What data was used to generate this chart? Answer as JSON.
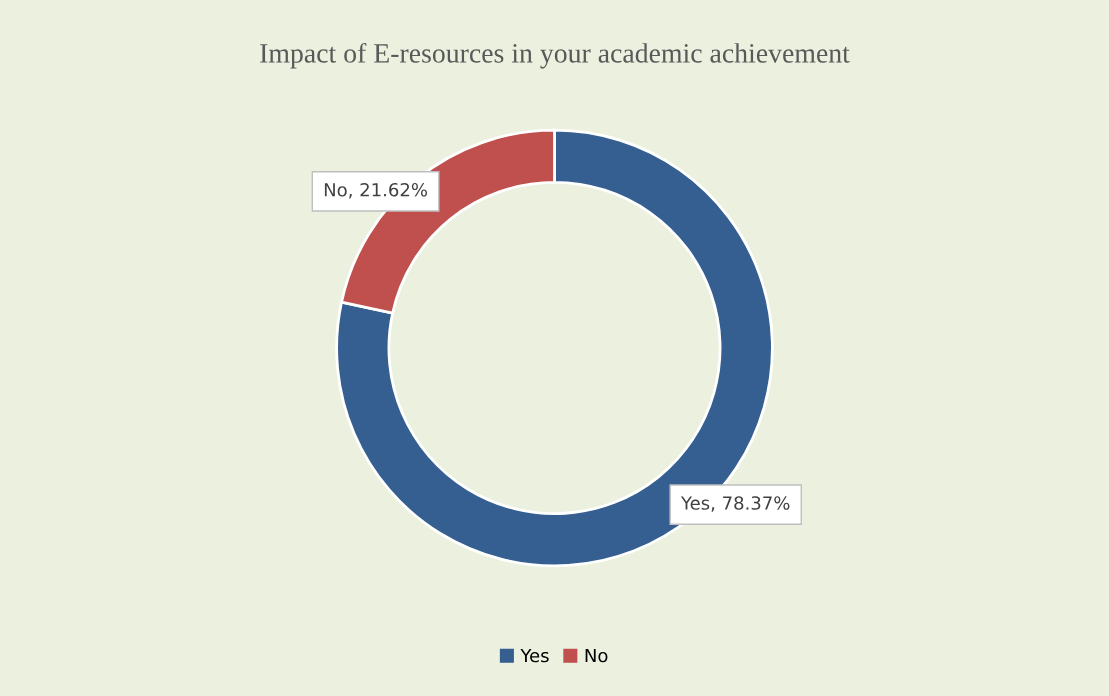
{
  "chart_data": {
    "type": "donut",
    "title": "Impact of E-resources in your academic achievement",
    "categories": [
      "Yes",
      "No"
    ],
    "values": [
      78.37,
      21.62
    ],
    "colors": [
      "#355f91",
      "#c0504d"
    ],
    "value_labels": [
      "Yes, 78.37%",
      "No, 21.62%"
    ],
    "legend": "bottom"
  }
}
